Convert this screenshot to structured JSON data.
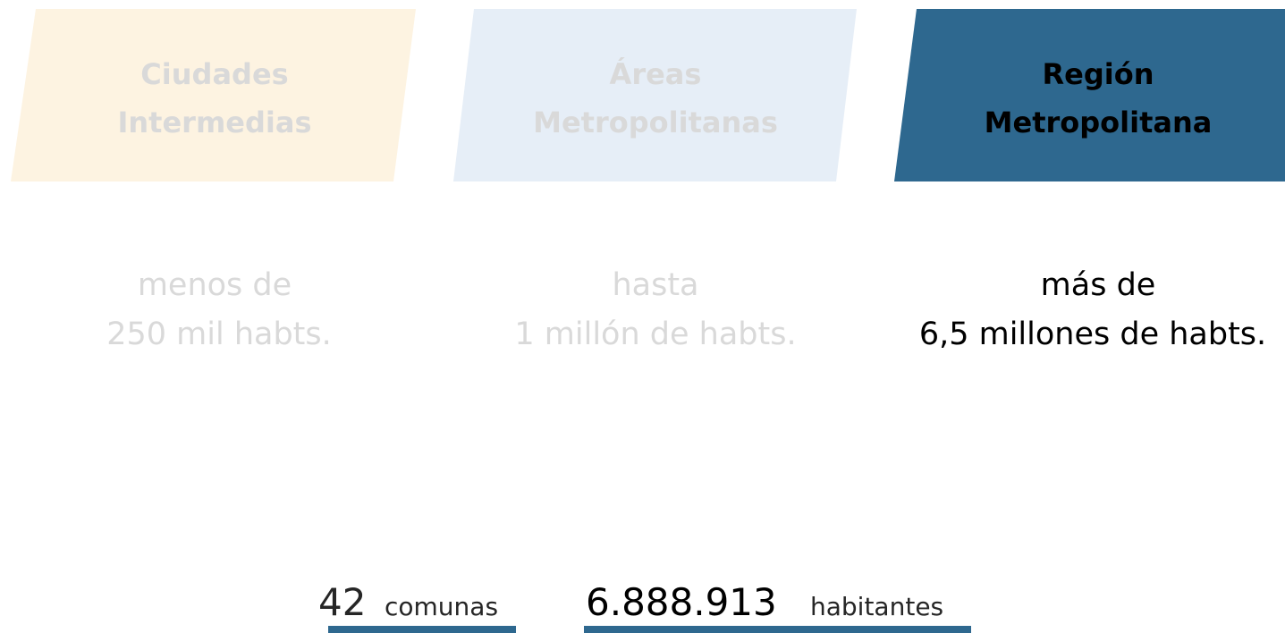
{
  "cards": [
    {
      "title": [
        "Ciudades",
        "Intermedias"
      ],
      "description": [
        "menos de",
        "250 mil habts."
      ]
    },
    {
      "title": [
        "Áreas",
        "Metropolitanas"
      ],
      "description": [
        "hasta",
        "1 millón de habts."
      ]
    },
    {
      "title": [
        "Región",
        "Metropolitana"
      ],
      "description": [
        "más de",
        "6,5 millones de habts."
      ]
    }
  ],
  "stats": [
    {
      "number": "42",
      "label": "comunas"
    },
    {
      "number": "6.888.913",
      "label": "habitantes"
    }
  ]
}
